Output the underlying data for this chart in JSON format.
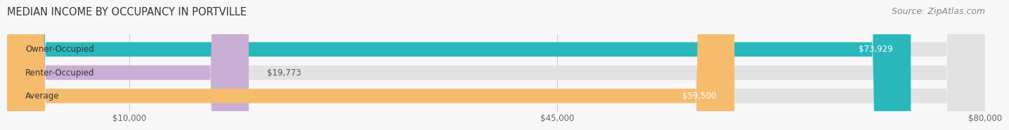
{
  "title": "MEDIAN INCOME BY OCCUPANCY IN PORTVILLE",
  "source": "Source: ZipAtlas.com",
  "categories": [
    "Owner-Occupied",
    "Renter-Occupied",
    "Average"
  ],
  "values": [
    73929,
    19773,
    59500
  ],
  "bar_colors": [
    "#2ab8bc",
    "#c9aed6",
    "#f5bc6e"
  ],
  "value_labels": [
    "$73,929",
    "$19,773",
    "$59,500"
  ],
  "xmax": 80000,
  "xticks": [
    10000,
    45000,
    80000
  ],
  "xtick_labels": [
    "$10,000",
    "$45,000",
    "$80,000"
  ],
  "title_fontsize": 10.5,
  "source_fontsize": 9,
  "label_fontsize": 8.5,
  "bar_height": 0.62,
  "background_color": "#f7f7f7",
  "bar_bg_color": "#e2e2e2"
}
